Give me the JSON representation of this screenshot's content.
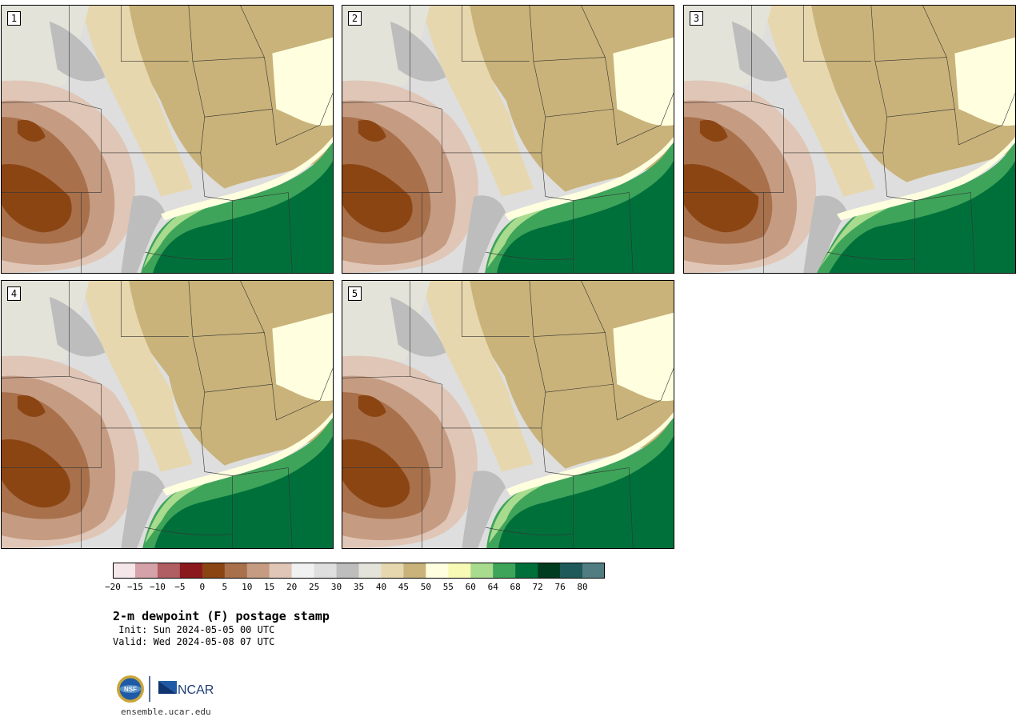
{
  "panels": [
    {
      "id": "1"
    },
    {
      "id": "2"
    },
    {
      "id": "3"
    },
    {
      "id": "4"
    },
    {
      "id": "5"
    }
  ],
  "legend": {
    "colors": [
      "#f5e6ea",
      "#d4a2a8",
      "#b05d63",
      "#8b1a1e",
      "#8b4513",
      "#a8704b",
      "#c59c82",
      "#e0c6b6",
      "#f1f1f1",
      "#dedede",
      "#bdbdbd",
      "#e3e3d9",
      "#e6d7ae",
      "#c9b37a",
      "#ffffe0",
      "#f7f9b5",
      "#a8db8e",
      "#3ea45a",
      "#00703a",
      "#003c1f",
      "#1e5a5a",
      "#517d82"
    ],
    "ticks": [
      "−20",
      "−15",
      "−10",
      "−5",
      "0",
      "5",
      "10",
      "15",
      "20",
      "25",
      "30",
      "35",
      "40",
      "45",
      "50",
      "55",
      "60",
      "64",
      "68",
      "72",
      "76",
      "80"
    ]
  },
  "title": "2-m dewpoint (F) postage stamp",
  "init": " Init: Sun 2024-05-05 00 UTC",
  "valid": "Valid: Wed 2024-05-08 07 UTC",
  "logo": {
    "nsf": "NSF",
    "ncar": "NCAR"
  },
  "website": "ensemble.ucar.edu"
}
